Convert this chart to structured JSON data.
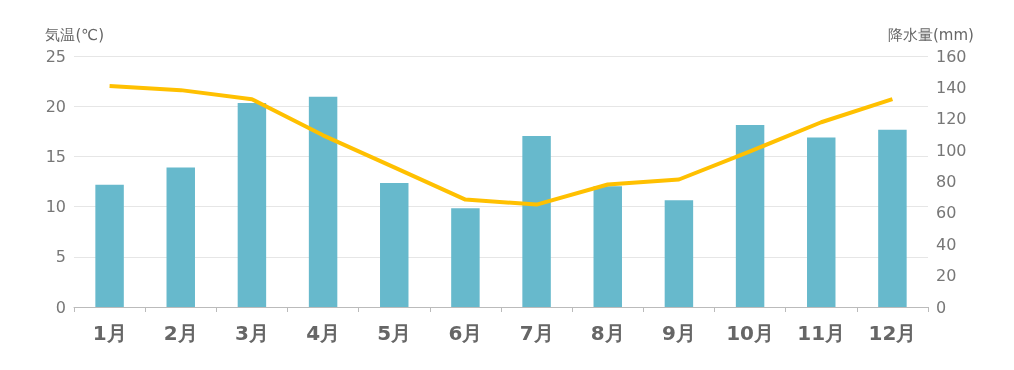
{
  "chart_data": {
    "type": "bar",
    "ylabel": "気温(℃)",
    "y2label": "降水量(mm)",
    "categories": [
      "1月",
      "2月",
      "3月",
      "4月",
      "5月",
      "6月",
      "7月",
      "8月",
      "9月",
      "10月",
      "11月",
      "12月"
    ],
    "series": [
      {
        "axis": "y2",
        "color": "#67b9cc",
        "values": [
          78,
          89,
          130,
          134,
          79,
          63,
          109,
          77,
          68,
          116,
          108,
          113
        ]
      },
      {
        "type": "line",
        "axis": "y",
        "color": "#ffc000",
        "marker": "none",
        "values": [
          22.0,
          21.6,
          20.7,
          17.1,
          13.9,
          10.7,
          10.2,
          12.2,
          12.7,
          15.5,
          18.4,
          20.7
        ]
      }
    ],
    "ylim": [
      0,
      25
    ],
    "yticks": [
      0,
      5,
      10,
      15,
      20,
      25
    ],
    "y2lim": [
      0,
      160
    ],
    "y2ticks": [
      0,
      20,
      40,
      60,
      80,
      100,
      120,
      140,
      160
    ],
    "grid": "y"
  }
}
